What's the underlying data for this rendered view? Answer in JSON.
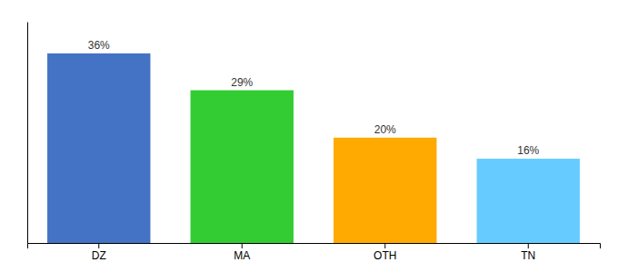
{
  "chart_data": {
    "type": "bar",
    "categories": [
      "DZ",
      "MA",
      "OTH",
      "TN"
    ],
    "values": [
      36,
      29,
      20,
      16
    ],
    "value_labels": [
      "36%",
      "29%",
      "20%",
      "16%"
    ],
    "colors": [
      "#4472c4",
      "#33cc33",
      "#ffaa00",
      "#66ccff"
    ],
    "ylim": [
      0,
      42
    ],
    "data_labels": true,
    "tick_labels": "x"
  }
}
